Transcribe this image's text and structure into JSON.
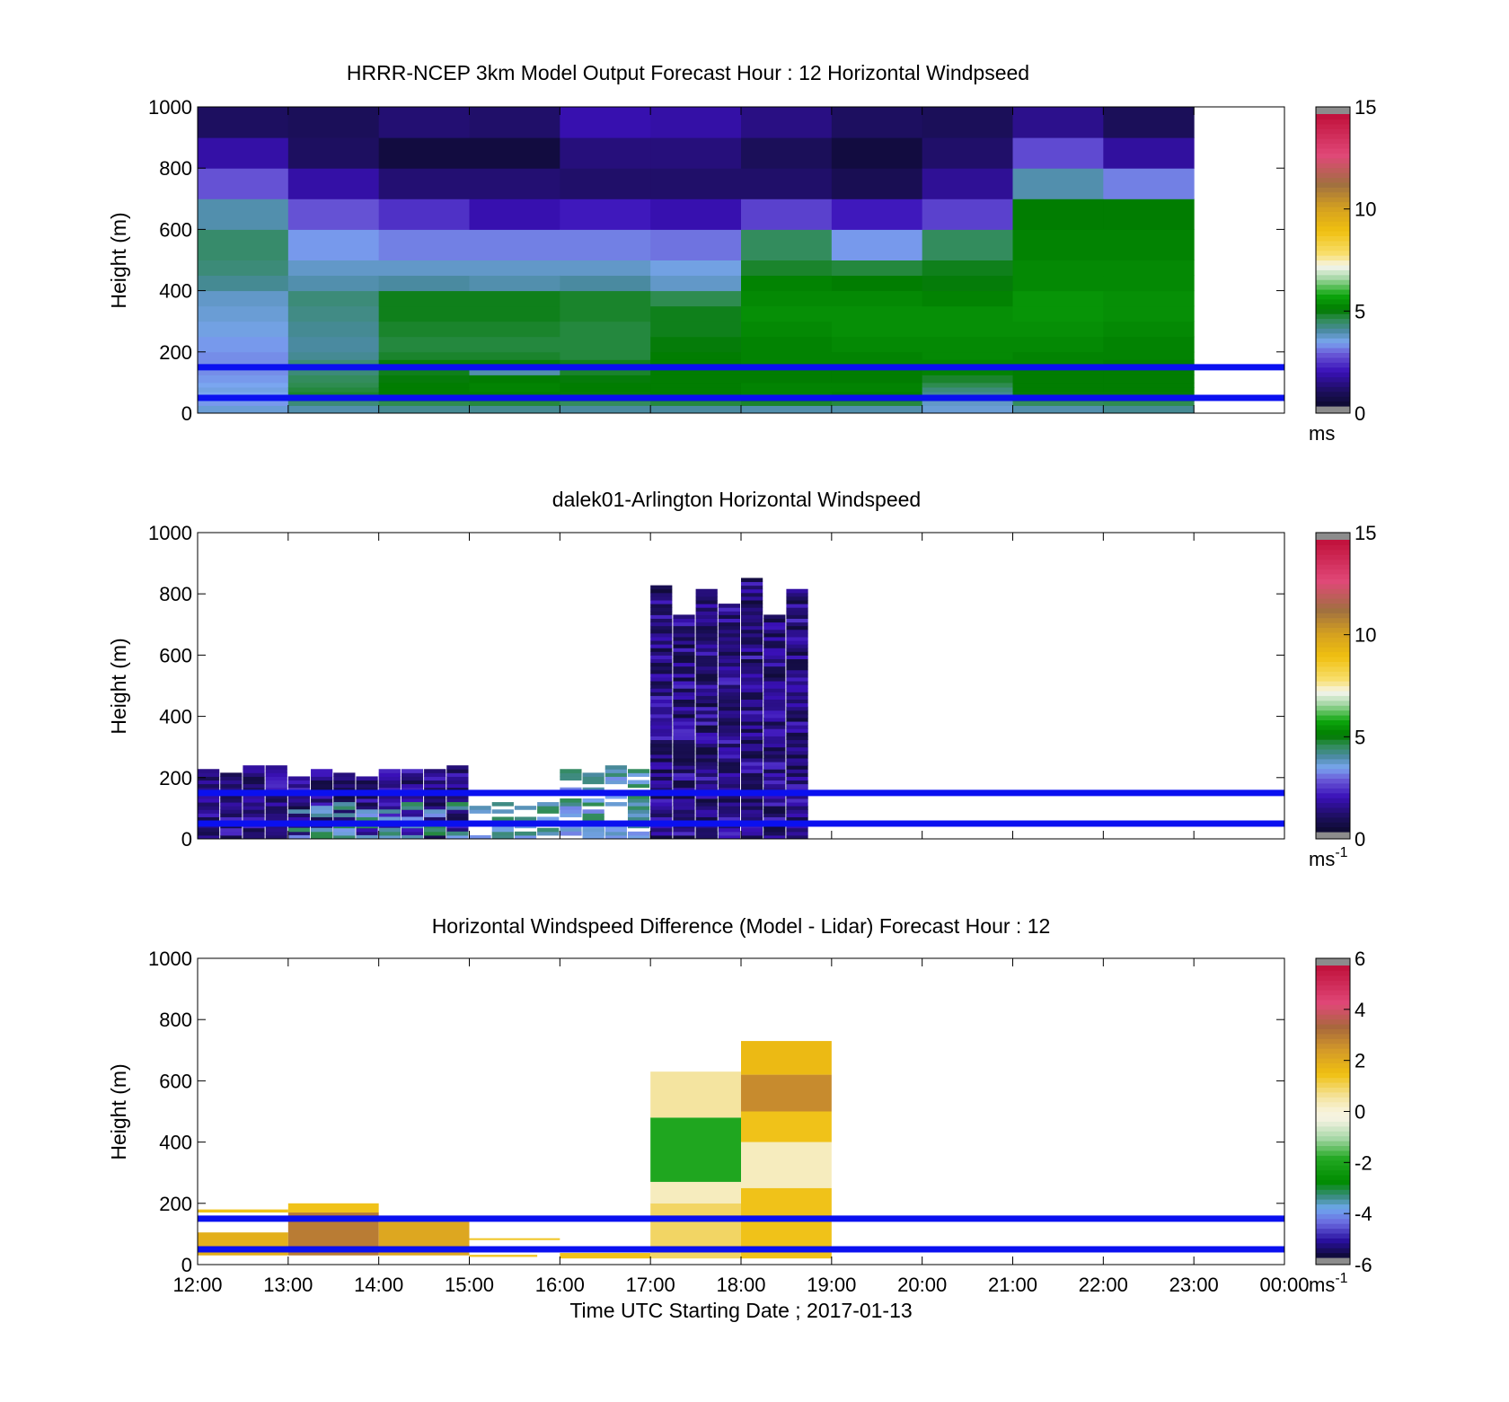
{
  "figure": {
    "xlabel": "Time UTC  Starting Date ; 2017-01-13",
    "x_ticks": [
      "12:00",
      "13:00",
      "14:00",
      "15:00",
      "16:00",
      "17:00",
      "18:00",
      "19:00",
      "20:00",
      "21:00",
      "22:00",
      "23:00",
      "00:00"
    ],
    "ylabel": "Height (m)",
    "y_ticks": [
      "0",
      "200",
      "400",
      "600",
      "800",
      "1000"
    ]
  },
  "chart_data": [
    {
      "type": "heatmap",
      "title": "HRRR-NCEP 3km Model Output   Forecast Hour : 12 Horizontal Windpseed",
      "ylabel": "Height (m)",
      "xlim": [
        "12:00",
        "00:00"
      ],
      "ylim": [
        0,
        1000
      ],
      "colorbar": {
        "min": 0,
        "max": 15,
        "ticks": [
          "0",
          "5",
          "10",
          "15"
        ],
        "unit": "ms",
        "unit_sup": ""
      },
      "reference_lines_m": [
        150,
        50
      ],
      "levels_m": [
        0,
        25,
        40,
        55,
        70,
        85,
        100,
        125,
        150,
        175,
        200,
        250,
        300,
        350,
        400,
        450,
        500,
        600,
        700,
        800,
        900,
        1000
      ],
      "hours": [
        "12:00",
        "13:00",
        "14:00",
        "15:00",
        "16:00",
        "17:00",
        "18:00",
        "19:00",
        "20:00",
        "21:00",
        "22:00"
      ],
      "values": [
        [
          3.5,
          3.8,
          4.0,
          4.0,
          3.9,
          3.9,
          3.8,
          3.8,
          3.5,
          3.8,
          4.0
        ],
        [
          3.2,
          4.2,
          4.5,
          4.6,
          4.4,
          4.6,
          4.7,
          4.6,
          3.6,
          4.4,
          4.5
        ],
        [
          3.3,
          4.5,
          4.8,
          4.8,
          4.7,
          4.8,
          5.0,
          4.9,
          3.8,
          4.7,
          4.7
        ],
        [
          3.3,
          4.7,
          5.0,
          5.0,
          4.9,
          5.0,
          5.1,
          5.0,
          4.0,
          4.9,
          4.9
        ],
        [
          3.4,
          4.6,
          5.0,
          5.1,
          5.0,
          5.0,
          5.1,
          5.1,
          4.2,
          5.0,
          5.0
        ],
        [
          3.3,
          4.5,
          5.0,
          5.1,
          5.0,
          5.0,
          5.1,
          5.1,
          4.5,
          5.0,
          5.0
        ],
        [
          3.2,
          4.4,
          4.9,
          5.0,
          4.9,
          5.0,
          5.0,
          5.0,
          4.7,
          5.0,
          5.0
        ],
        [
          3.1,
          4.2,
          4.8,
          3.8,
          4.7,
          5.0,
          5.0,
          5.0,
          5.1,
          5.0,
          5.0
        ],
        [
          3.1,
          4.2,
          4.9,
          4.9,
          4.8,
          5.0,
          5.1,
          5.1,
          5.1,
          5.1,
          5.0
        ],
        [
          3.1,
          4.0,
          4.7,
          4.7,
          4.6,
          5.0,
          5.1,
          5.1,
          5.2,
          5.1,
          5.1
        ],
        [
          3.2,
          3.9,
          4.6,
          4.6,
          4.6,
          4.9,
          5.1,
          5.2,
          5.2,
          5.2,
          5.1
        ],
        [
          3.4,
          4.0,
          4.7,
          4.7,
          4.6,
          4.8,
          5.2,
          5.3,
          5.3,
          5.3,
          5.2
        ],
        [
          3.5,
          4.1,
          4.8,
          4.8,
          4.7,
          4.8,
          5.3,
          5.3,
          5.3,
          5.4,
          5.3
        ],
        [
          3.6,
          4.2,
          4.8,
          4.8,
          4.7,
          4.5,
          5.2,
          5.2,
          5.1,
          5.4,
          5.3
        ],
        [
          4.0,
          3.8,
          3.9,
          3.8,
          3.9,
          3.6,
          5.1,
          5.0,
          4.9,
          5.2,
          5.2
        ],
        [
          4.2,
          3.6,
          3.6,
          3.6,
          3.6,
          3.4,
          4.7,
          4.6,
          4.8,
          5.2,
          5.2
        ],
        [
          4.3,
          3.2,
          3.0,
          3.0,
          3.0,
          2.9,
          4.4,
          3.2,
          4.4,
          5.1,
          5.1
        ],
        [
          3.8,
          2.6,
          2.2,
          1.7,
          1.9,
          1.7,
          2.4,
          1.9,
          2.4,
          5.0,
          5.0
        ],
        [
          2.6,
          1.6,
          1.0,
          1.0,
          0.9,
          0.9,
          0.9,
          0.6,
          1.4,
          3.8,
          3.0
        ],
        [
          1.6,
          0.8,
          0.3,
          0.3,
          1.1,
          1.1,
          0.7,
          0.3,
          0.9,
          2.5,
          1.5
        ],
        [
          0.8,
          0.7,
          1.0,
          0.9,
          1.7,
          1.6,
          1.2,
          0.8,
          0.7,
          1.3,
          0.7
        ]
      ]
    },
    {
      "type": "heatmap",
      "title": "dalek01-Arlington  Horizontal Windspeed",
      "ylabel": "Height (m)",
      "xlim": [
        "12:00",
        "00:00"
      ],
      "ylim": [
        0,
        1000
      ],
      "colorbar": {
        "min": 0,
        "max": 15,
        "ticks": [
          "0",
          "5",
          "10",
          "15"
        ],
        "unit": "ms",
        "unit_sup": "-1"
      },
      "reference_lines_m": [
        150,
        50
      ],
      "profile_step_min": 15,
      "gate_m": 12,
      "blocks": [
        {
          "from": "12:00",
          "to": "15:00",
          "top_m": 220,
          "speeds": [
            0.3,
            2.2
          ]
        },
        {
          "from": "13:00",
          "to": "16:30",
          "top_m": 110,
          "speeds": [
            3.0,
            4.6
          ]
        },
        {
          "from": "16:00",
          "to": "17:00",
          "top_m": 230,
          "speeds": [
            3.0,
            4.5
          ]
        },
        {
          "from": "17:00",
          "to": "18:45",
          "top_m": 460,
          "speeds": [
            3.8,
            5.3
          ]
        },
        {
          "from": "17:00",
          "to": "18:45",
          "top_m": 780,
          "speeds": [
            0.2,
            2.2
          ]
        }
      ]
    },
    {
      "type": "heatmap",
      "title": "Horizontal Windspeed Difference (Model - Lidar) Forecast Hour : 12",
      "ylabel": "Height (m)",
      "xlim": [
        "12:00",
        "00:00"
      ],
      "ylim": [
        0,
        1000
      ],
      "colorbar": {
        "min": -6,
        "max": 6,
        "ticks": [
          "-6",
          "-4",
          "-2",
          "0",
          "2",
          "4",
          "6"
        ],
        "unit": "ms",
        "unit_sup": "-1"
      },
      "reference_lines_m": [
        150,
        50
      ],
      "blocks": [
        {
          "from": "12:00",
          "to": "13:00",
          "bottom_m": 30,
          "top_m": 105,
          "diff": 2.0
        },
        {
          "from": "12:00",
          "to": "13:00",
          "bottom_m": 170,
          "top_m": 180,
          "diff": 1.5
        },
        {
          "from": "13:00",
          "to": "14:00",
          "bottom_m": 30,
          "top_m": 170,
          "diff": 3.1
        },
        {
          "from": "13:00",
          "to": "14:00",
          "bottom_m": 170,
          "top_m": 200,
          "diff": 1.5
        },
        {
          "from": "14:00",
          "to": "15:00",
          "bottom_m": 30,
          "top_m": 140,
          "diff": 2.2
        },
        {
          "from": "15:00",
          "to": "16:00",
          "bottom_m": 80,
          "top_m": 86,
          "diff": 1.4
        },
        {
          "from": "15:00",
          "to": "15:45",
          "bottom_m": 25,
          "top_m": 32,
          "diff": 1.4
        },
        {
          "from": "16:00",
          "to": "17:00",
          "bottom_m": 20,
          "top_m": 38,
          "diff": 1.5
        },
        {
          "from": "17:00",
          "to": "18:00",
          "bottom_m": 20,
          "top_m": 200,
          "diff": 1.0
        },
        {
          "from": "17:00",
          "to": "18:00",
          "bottom_m": 200,
          "top_m": 270,
          "diff": 0.3
        },
        {
          "from": "17:00",
          "to": "18:00",
          "bottom_m": 270,
          "top_m": 480,
          "diff": -2.0
        },
        {
          "from": "17:00",
          "to": "18:00",
          "bottom_m": 480,
          "top_m": 630,
          "diff": 0.6
        },
        {
          "from": "18:00",
          "to": "19:00",
          "bottom_m": 20,
          "top_m": 250,
          "diff": 1.5
        },
        {
          "from": "18:00",
          "to": "19:00",
          "bottom_m": 250,
          "top_m": 400,
          "diff": 0.3
        },
        {
          "from": "18:00",
          "to": "19:00",
          "bottom_m": 400,
          "top_m": 500,
          "diff": 1.5
        },
        {
          "from": "18:00",
          "to": "19:00",
          "bottom_m": 500,
          "top_m": 620,
          "diff": 2.8
        },
        {
          "from": "18:00",
          "to": "19:00",
          "bottom_m": 620,
          "top_m": 730,
          "diff": 1.7
        }
      ]
    }
  ]
}
